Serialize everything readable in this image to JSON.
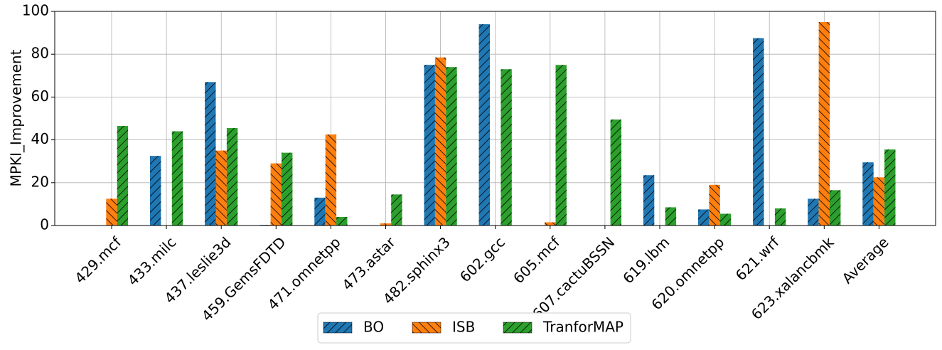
{
  "chart_data": {
    "type": "bar",
    "y_label": "MPKI_Improvement",
    "categories": [
      "429.mcf",
      "433.milc",
      "437.leslie3d",
      "459.GemsFDTD",
      "471.omnetpp",
      "473.astar",
      "482.sphinx3",
      "602.gcc",
      "605.mcf",
      "607.cactuBSSN",
      "619.lbm",
      "620.omnetpp",
      "621.wrf",
      "623.xalancbmk",
      "Average"
    ],
    "series": [
      {
        "name": "BO",
        "color": "#1f77b4",
        "hatch": "///",
        "values": [
          0,
          32.5,
          67,
          0.3,
          13,
          0,
          75,
          94,
          0,
          0,
          23.5,
          7.5,
          87.5,
          12.5,
          29.5
        ]
      },
      {
        "name": "ISB",
        "color": "#ff7f0e",
        "hatch": "\\\\\\",
        "values": [
          12.5,
          0,
          35,
          29,
          42.5,
          1,
          78.5,
          0,
          1.5,
          0,
          0,
          19,
          0,
          95,
          22.5
        ]
      },
      {
        "name": "TranforMAP",
        "color": "#2ca02c",
        "hatch": "///",
        "values": [
          46.5,
          44,
          45.5,
          34,
          4,
          14.5,
          74,
          73,
          75,
          49.5,
          8.5,
          5.5,
          8,
          16.5,
          35.5
        ]
      }
    ],
    "ylim": [
      0,
      100
    ],
    "yticks": [
      0,
      20,
      40,
      60,
      80,
      100
    ],
    "grid": true,
    "legend": "bottom"
  }
}
